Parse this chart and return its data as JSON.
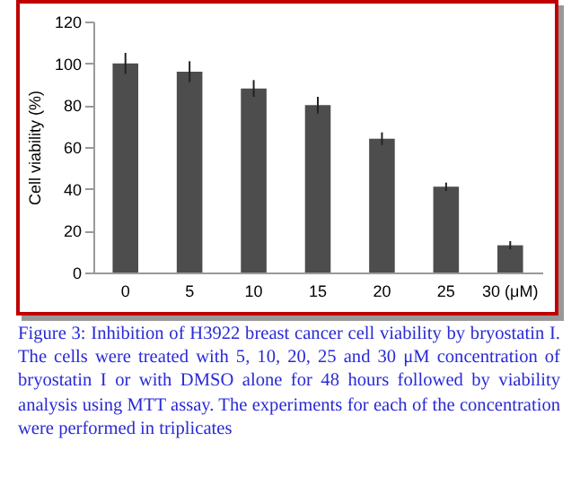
{
  "chart_data": {
    "type": "bar",
    "ylabel": "Cell viability (%)",
    "categories": [
      "0",
      "5",
      "10",
      "15",
      "20",
      "25",
      "30 (μM)"
    ],
    "values": [
      100,
      96,
      88,
      80,
      64,
      41,
      13
    ],
    "errors": [
      5,
      5,
      4,
      4,
      3,
      2,
      2
    ],
    "color": "#4d4d4d",
    "ylim": [
      0,
      120
    ],
    "yticks": [
      0,
      20,
      40,
      60,
      80,
      100,
      120
    ],
    "grid": false,
    "annotations": [
      "Figure 3: Inhibition of H3922 breast cancer cell viability by bryostatin I. The cells were treated with 5, 10, 20, 25 and 30 μM concentration of bryostatin I or with DMSO alone for 48 hours followed by viability analysis using MTT assay. The experiments for each of the concentration were performed in triplicates"
    ]
  }
}
